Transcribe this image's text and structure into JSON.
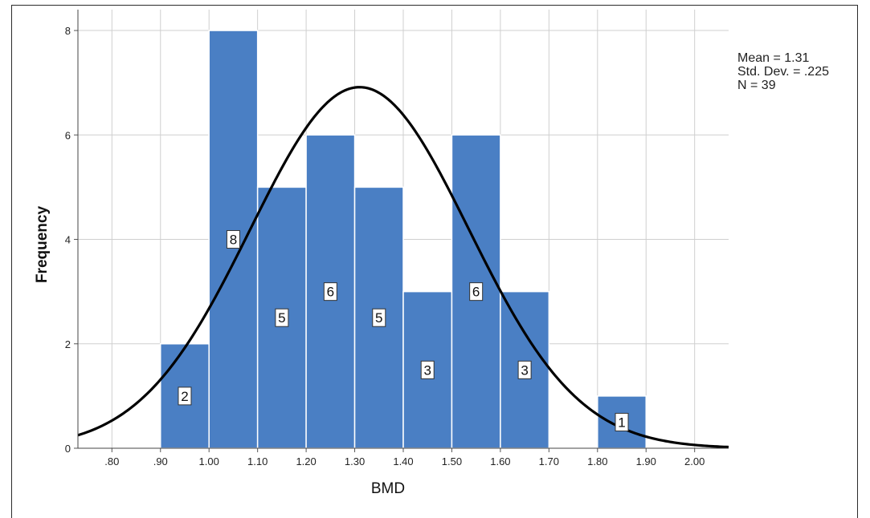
{
  "chart_data": {
    "type": "bar",
    "subtype": "histogram",
    "xlabel": "BMD",
    "ylabel": "Frequency",
    "xlim": [
      0.73,
      2.07
    ],
    "ylim": [
      0,
      8.4
    ],
    "x_ticks": [
      ".80",
      ".90",
      "1.00",
      "1.10",
      "1.20",
      "1.30",
      "1.40",
      "1.50",
      "1.60",
      "1.70",
      "1.80",
      "1.90",
      "2.00"
    ],
    "y_ticks": [
      "0",
      "2",
      "4",
      "6",
      "8"
    ],
    "bins": [
      {
        "start": 0.9,
        "end": 1.0,
        "count": 2
      },
      {
        "start": 1.0,
        "end": 1.1,
        "count": 8
      },
      {
        "start": 1.1,
        "end": 1.2,
        "count": 5
      },
      {
        "start": 1.2,
        "end": 1.3,
        "count": 6
      },
      {
        "start": 1.3,
        "end": 1.4,
        "count": 5
      },
      {
        "start": 1.4,
        "end": 1.5,
        "count": 3
      },
      {
        "start": 1.5,
        "end": 1.6,
        "count": 6
      },
      {
        "start": 1.6,
        "end": 1.7,
        "count": 3
      },
      {
        "start": 1.8,
        "end": 1.9,
        "count": 1
      }
    ],
    "bar_labels": [
      "2",
      "8",
      "5",
      "6",
      "5",
      "3",
      "6",
      "3",
      "1"
    ],
    "normal_curve": {
      "mean": 1.31,
      "std": 0.225,
      "n": 39,
      "bin_width": 0.1
    },
    "stats": {
      "mean": "Mean = 1.31",
      "std_dev": "Std. Dev. = .225",
      "n": "N = 39"
    },
    "grid": true,
    "colors": {
      "bar": "#4a7fc4",
      "curve": "#000000",
      "grid": "#cfcfcf"
    }
  }
}
